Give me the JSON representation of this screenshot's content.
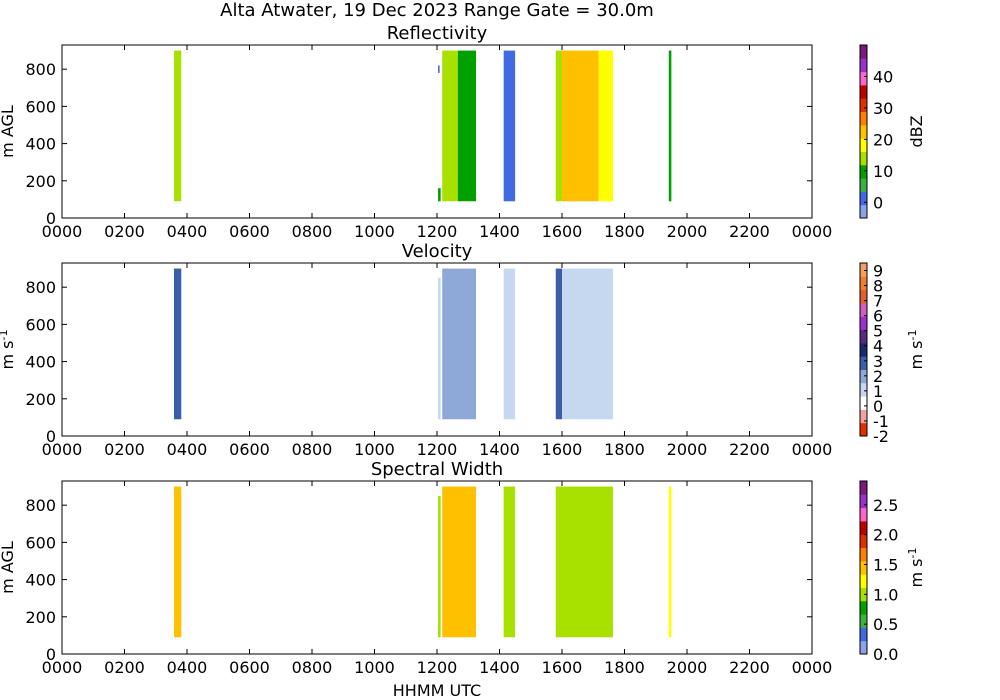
{
  "suptitle": "Alta Atwater, 19 Dec 2023 Range Gate = 30.0m",
  "xlabel": "HHMM UTC",
  "chart_data": [
    {
      "type": "heatmap",
      "title": "Reflectivity",
      "ylabel": "m AGL",
      "colorbar_label": "dBZ",
      "xlim": [
        0,
        1440
      ],
      "ylim": [
        0,
        930
      ],
      "xticks": [
        "0000",
        "0200",
        "0400",
        "0600",
        "0800",
        "1000",
        "1200",
        "1400",
        "1600",
        "1800",
        "2000",
        "2200",
        "0000"
      ],
      "yticks": [
        0,
        200,
        400,
        600,
        800
      ],
      "clim": [
        -5,
        50
      ],
      "cticks": [
        0,
        10,
        20,
        30,
        40
      ],
      "colormap": [
        "#8ba3e8",
        "#4169e1",
        "#3cb043",
        "#00a000",
        "#a8e000",
        "#ffff00",
        "#ffc000",
        "#ff7f00",
        "#e03000",
        "#c00000",
        "#ff66cc",
        "#9932cc",
        "#7a1a7a"
      ],
      "echo_segments": [
        {
          "start": 215,
          "end": 229,
          "bottom": 90,
          "top": 900,
          "value": 15
        },
        {
          "start": 722,
          "end": 725,
          "bottom": 780,
          "top": 820,
          "value": 3
        },
        {
          "start": 722,
          "end": 727,
          "bottom": 90,
          "top": 160,
          "value": 8
        },
        {
          "start": 730,
          "end": 760,
          "bottom": 90,
          "top": 900,
          "value": 12
        },
        {
          "start": 760,
          "end": 795,
          "bottom": 90,
          "top": 900,
          "value": 9
        },
        {
          "start": 848,
          "end": 870,
          "bottom": 90,
          "top": 900,
          "value": 1
        },
        {
          "start": 948,
          "end": 960,
          "bottom": 90,
          "top": 900,
          "value": 14
        },
        {
          "start": 960,
          "end": 1030,
          "bottom": 90,
          "top": 900,
          "value": 24
        },
        {
          "start": 1030,
          "end": 1058,
          "bottom": 90,
          "top": 900,
          "value": 17
        },
        {
          "start": 1165,
          "end": 1170,
          "bottom": 90,
          "top": 900,
          "value": 8
        }
      ]
    },
    {
      "type": "heatmap",
      "title": "Velocity",
      "ylabel": "m s^-1",
      "colorbar_label": "m s^-1",
      "xlim": [
        0,
        1440
      ],
      "ylim": [
        0,
        930
      ],
      "xticks": [
        "0000",
        "0200",
        "0400",
        "0600",
        "0800",
        "1000",
        "1200",
        "1400",
        "1600",
        "1800",
        "2000",
        "2200",
        "0000"
      ],
      "yticks": [
        0,
        200,
        400,
        600,
        800
      ],
      "clim": [
        -2,
        9.5
      ],
      "cticks": [
        "-2",
        "-1",
        "0",
        "1",
        "2",
        "3",
        "4",
        "5",
        "6",
        "7",
        "8",
        "9"
      ],
      "colormap": [
        "#e03000",
        "#f4a0a0",
        "#ffffff",
        "#c6d8f0",
        "#8ea8d8",
        "#3c5ea8",
        "#1a2a6c",
        "#5a2a7a",
        "#9932cc",
        "#d060c0",
        "#e06030",
        "#f08030",
        "#f4a060"
      ],
      "echo_segments": [
        {
          "start": 215,
          "end": 229,
          "bottom": 90,
          "top": 900,
          "value": 3.2
        },
        {
          "start": 722,
          "end": 727,
          "bottom": 90,
          "top": 850,
          "value": 1.5
        },
        {
          "start": 730,
          "end": 795,
          "bottom": 90,
          "top": 900,
          "value": 1.7
        },
        {
          "start": 848,
          "end": 870,
          "bottom": 90,
          "top": 900,
          "value": 1.4
        },
        {
          "start": 948,
          "end": 960,
          "bottom": 90,
          "top": 900,
          "value": 2.6
        },
        {
          "start": 960,
          "end": 1058,
          "bottom": 90,
          "top": 900,
          "value": 1.3
        },
        {
          "start": 1165,
          "end": 1170,
          "bottom": 90,
          "top": 900,
          "value": 0.6
        }
      ]
    },
    {
      "type": "heatmap",
      "title": "Spectral Width",
      "ylabel": "m AGL",
      "colorbar_label": "m s^-1",
      "xlim": [
        0,
        1440
      ],
      "ylim": [
        0,
        930
      ],
      "xticks": [
        "0000",
        "0200",
        "0400",
        "0600",
        "0800",
        "1000",
        "1200",
        "1400",
        "1600",
        "1800",
        "2000",
        "2200",
        "0000"
      ],
      "yticks": [
        0,
        200,
        400,
        600,
        800
      ],
      "clim": [
        0,
        2.9
      ],
      "cticks": [
        "0.0",
        "0.5",
        "1.0",
        "1.5",
        "2.0",
        "2.5"
      ],
      "colormap": [
        "#8ba3e8",
        "#4169e1",
        "#3cb043",
        "#00a000",
        "#a8e000",
        "#ffff00",
        "#ffc000",
        "#ff7f00",
        "#e03000",
        "#c00000",
        "#ff66cc",
        "#9932cc",
        "#7a1a7a"
      ],
      "echo_segments": [
        {
          "start": 215,
          "end": 229,
          "bottom": 90,
          "top": 900,
          "value": 1.4
        },
        {
          "start": 722,
          "end": 727,
          "bottom": 90,
          "top": 850,
          "value": 0.9
        },
        {
          "start": 730,
          "end": 795,
          "bottom": 90,
          "top": 900,
          "value": 1.4
        },
        {
          "start": 848,
          "end": 870,
          "bottom": 90,
          "top": 900,
          "value": 0.9
        },
        {
          "start": 948,
          "end": 1058,
          "bottom": 90,
          "top": 900,
          "value": 1.1
        },
        {
          "start": 1165,
          "end": 1170,
          "bottom": 90,
          "top": 900,
          "value": 1.3
        }
      ]
    }
  ]
}
